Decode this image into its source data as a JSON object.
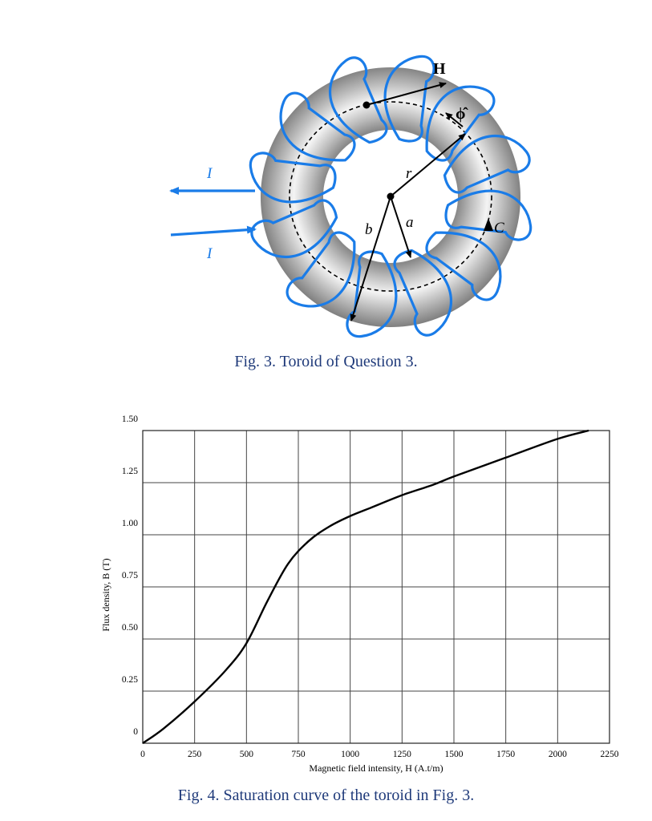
{
  "fig3": {
    "caption": "Fig. 3. Toroid of Question 3.",
    "labels": {
      "H": "H",
      "phi_hat": "ϕ̂",
      "r": "r",
      "a": "a",
      "b": "b",
      "C": "C",
      "I_top": "I",
      "I_bottom": "I"
    },
    "colors": {
      "winding": "#1a7ce8",
      "core_dark": "#8a8a8a",
      "core_light": "#f2f2f2"
    }
  },
  "fig4": {
    "caption": "Fig. 4. Saturation curve of the toroid in Fig. 3."
  },
  "chart_data": {
    "type": "line",
    "title": "",
    "xlabel": "Magnetic field intensity, H (A.t/m)",
    "ylabel": "Flux density, B (T)",
    "xlim": [
      0,
      2250
    ],
    "ylim": [
      0,
      1.5
    ],
    "x_ticks": [
      0,
      250,
      500,
      750,
      1000,
      1250,
      1500,
      1750,
      2000,
      2250
    ],
    "x_tick_labels": [
      "0",
      "250",
      "500",
      "750",
      "1000",
      "1250",
      "1500",
      "1750",
      "2000",
      "2250"
    ],
    "y_ticks": [
      0,
      0.25,
      0.5,
      0.75,
      1.0,
      1.25,
      1.5
    ],
    "y_tick_labels": [
      "0",
      "0.25",
      "0.50",
      "0.75",
      "1.00",
      "1.25",
      "1.50"
    ],
    "grid": true,
    "series": [
      {
        "x": [
          0,
          100,
          250,
          400,
          500,
          600,
          700,
          800,
          900,
          1000,
          1100,
          1250,
          1400,
          1500,
          1750,
          2000,
          2150
        ],
        "y": [
          0,
          0.07,
          0.2,
          0.35,
          0.48,
          0.68,
          0.86,
          0.97,
          1.04,
          1.09,
          1.13,
          1.19,
          1.24,
          1.28,
          1.37,
          1.46,
          1.5
        ]
      }
    ]
  }
}
